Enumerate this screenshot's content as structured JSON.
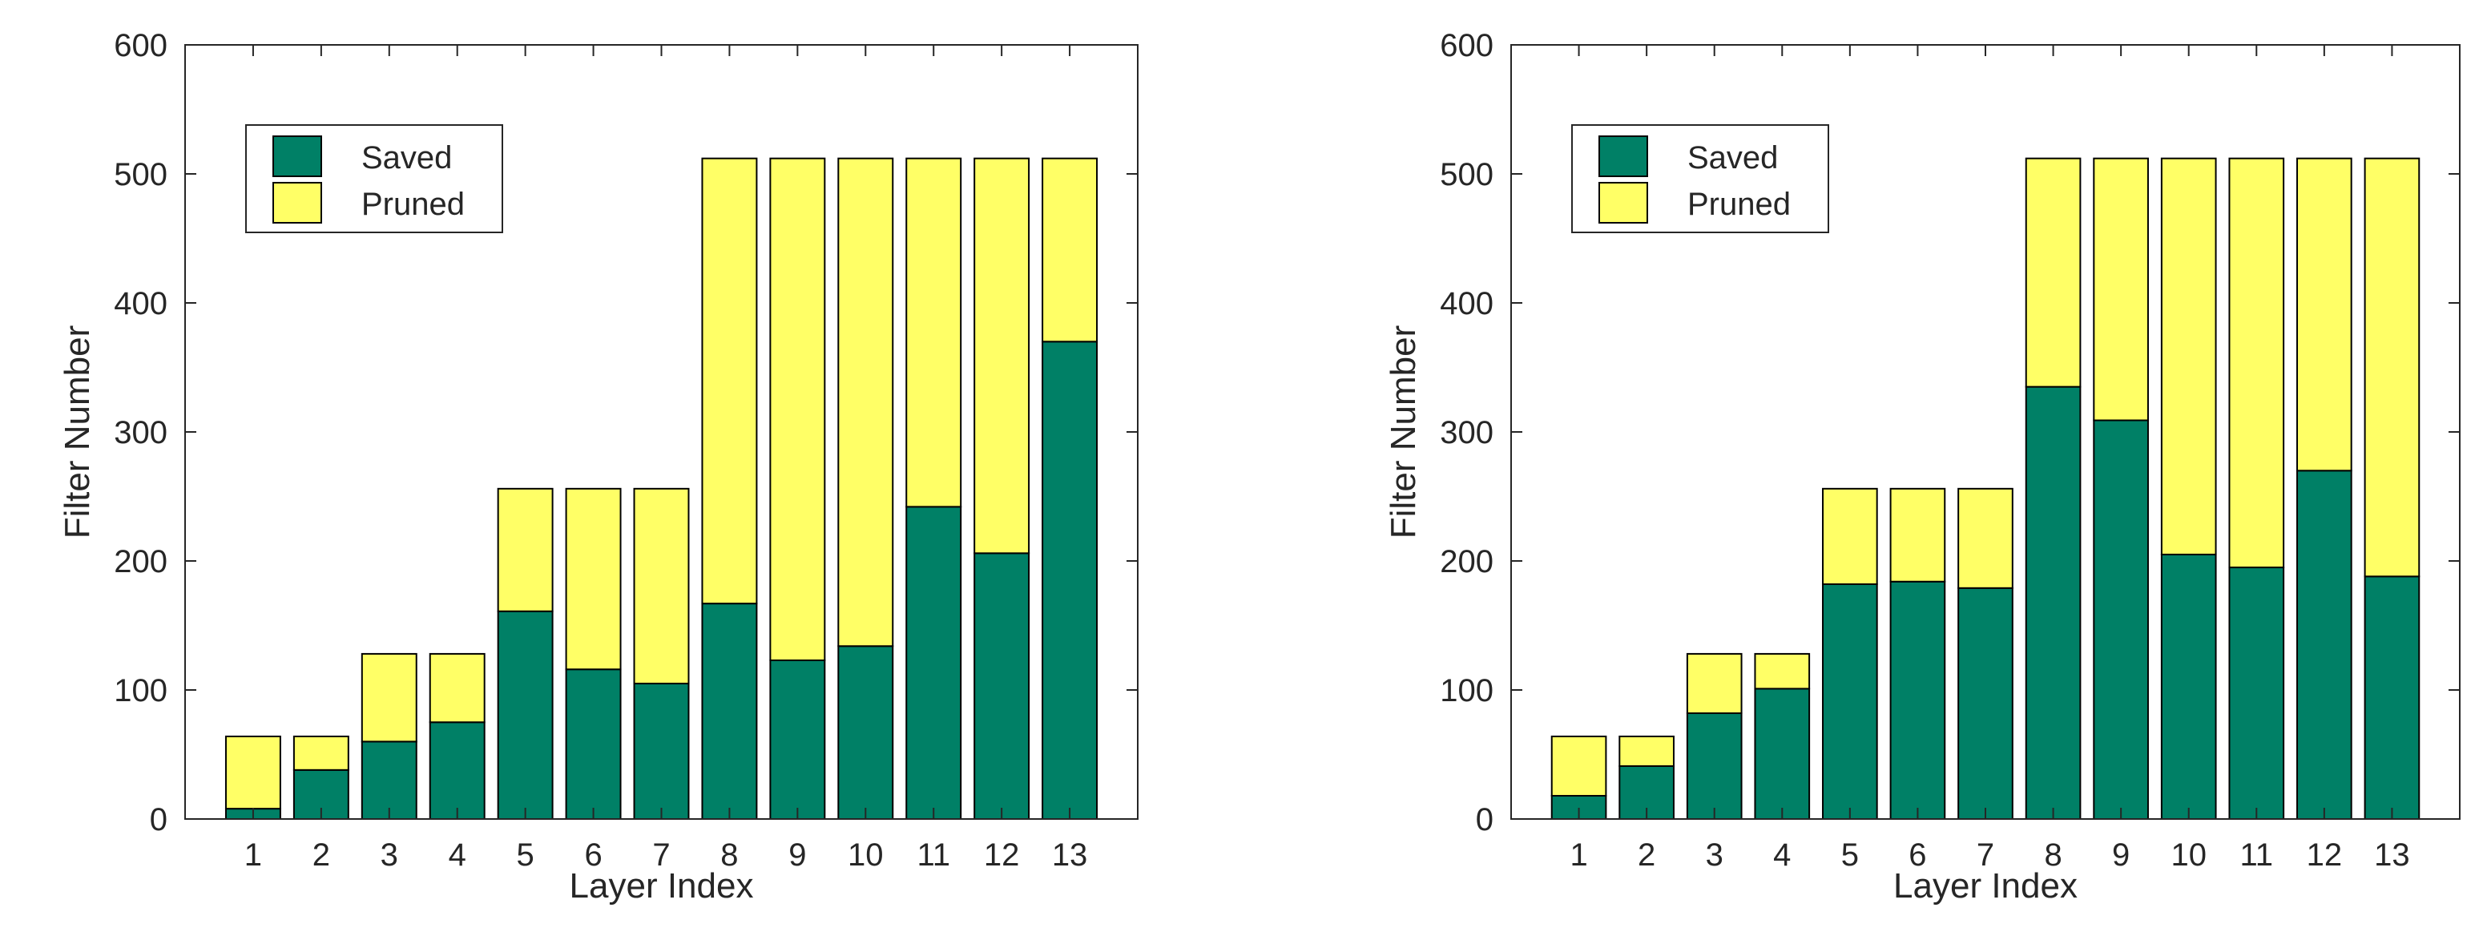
{
  "colors": {
    "saved": "#008066",
    "pruned": "#FFFF66",
    "edge": "#000000",
    "axis": "#262626"
  },
  "chart_data": [
    {
      "type": "bar",
      "stacked": true,
      "title": "",
      "xlabel": "Layer Index",
      "ylabel": "Filter Number",
      "ylim": [
        0,
        600
      ],
      "yticks": [
        0,
        100,
        200,
        300,
        400,
        500,
        600
      ],
      "categories": [
        "1",
        "2",
        "3",
        "4",
        "5",
        "6",
        "7",
        "8",
        "9",
        "10",
        "11",
        "12",
        "13"
      ],
      "legend": {
        "placement": "top-left",
        "entries": [
          "Saved",
          "Pruned"
        ]
      },
      "series": [
        {
          "name": "Saved",
          "values": [
            8,
            38,
            60,
            75,
            161,
            116,
            105,
            167,
            123,
            134,
            242,
            206,
            370
          ]
        },
        {
          "name": "Pruned",
          "values": [
            56,
            26,
            68,
            53,
            95,
            140,
            151,
            345,
            389,
            378,
            270,
            306,
            142
          ]
        }
      ]
    },
    {
      "type": "bar",
      "stacked": true,
      "title": "",
      "xlabel": "Layer Index",
      "ylabel": "Filter Number",
      "ylim": [
        0,
        600
      ],
      "yticks": [
        0,
        100,
        200,
        300,
        400,
        500,
        600
      ],
      "categories": [
        "1",
        "2",
        "3",
        "4",
        "5",
        "6",
        "7",
        "8",
        "9",
        "10",
        "11",
        "12",
        "13"
      ],
      "legend": {
        "placement": "top-left",
        "entries": [
          "Saved",
          "Pruned"
        ]
      },
      "series": [
        {
          "name": "Saved",
          "values": [
            18,
            41,
            82,
            101,
            182,
            184,
            179,
            335,
            309,
            205,
            195,
            270,
            188
          ]
        },
        {
          "name": "Pruned",
          "values": [
            46,
            23,
            46,
            27,
            74,
            72,
            77,
            177,
            203,
            307,
            317,
            242,
            324
          ]
        }
      ]
    }
  ]
}
